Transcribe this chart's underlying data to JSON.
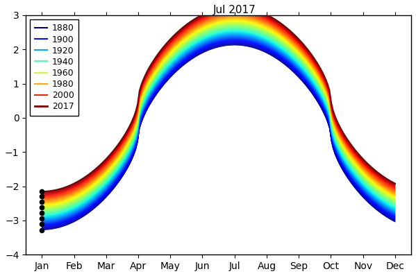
{
  "year_start": 1880,
  "year_end": 2017,
  "legend_years": [
    1880,
    1900,
    1920,
    1940,
    1960,
    1980,
    2000,
    2017
  ],
  "months": [
    "Jan",
    "Feb",
    "Mar",
    "Apr",
    "May",
    "Jun",
    "Jul",
    "Aug",
    "Sep",
    "Oct",
    "Nov",
    "Dec"
  ],
  "ylim": [
    -4,
    3
  ],
  "annotation_text": "Jul 2017",
  "background_color": "#ffffff",
  "dot_years": [
    1880,
    1900,
    1920,
    1940,
    1960,
    1980,
    2000,
    2017
  ],
  "base_amplitude": 2.7,
  "trend_per_year": 0.0082,
  "trend_base_year": 1950,
  "peak_month": 6.0,
  "sharpness": 1.6,
  "jan_extra_dip": 0.3,
  "dec_extra_dip": 0.2
}
